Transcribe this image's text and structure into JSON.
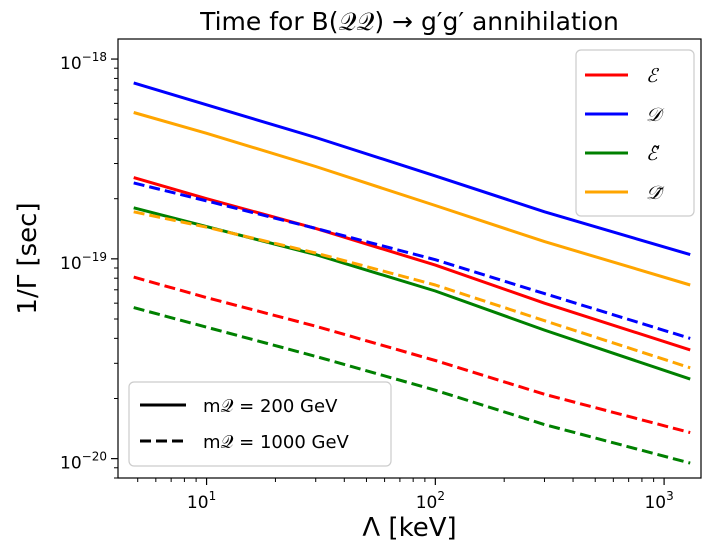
{
  "chart_data": {
    "type": "line",
    "title": "Time for B(𝒬𝒬) → g′g′ annihilation",
    "xlabel": "Λ [keV]",
    "ylabel": "1/Γ [sec]",
    "xscale": "log",
    "yscale": "log",
    "xlim": [
      4.1,
      1450
    ],
    "ylim": [
      8e-21,
      1.26e-18
    ],
    "x_tick_values": [
      10,
      100,
      1000
    ],
    "x_ticks": [
      {
        "base": "10",
        "exp": "1"
      },
      {
        "base": "10",
        "exp": "2"
      },
      {
        "base": "10",
        "exp": "3"
      }
    ],
    "y_tick_values": [
      1e-20,
      1e-19,
      1e-18
    ],
    "y_ticks": [
      {
        "base": "10",
        "exp": "−20"
      },
      {
        "base": "10",
        "exp": "−19"
      },
      {
        "base": "10",
        "exp": "−18"
      }
    ],
    "grid": false,
    "legend_colors": {
      "position": "top-right",
      "entries": [
        {
          "label": "ℰ",
          "color": "#ff0000"
        },
        {
          "label": "𝒟",
          "color": "#0000ff"
        },
        {
          "label": "ℰ̃",
          "color": "#008000"
        },
        {
          "label": "𝒟̃",
          "color": "#ffa500"
        }
      ]
    },
    "legend_styles": {
      "position": "bottom-left",
      "entries": [
        {
          "label": "m𝒬 = 200 GeV",
          "dash": "solid"
        },
        {
          "label": "m𝒬 = 1000 GeV",
          "dash": "dashed"
        }
      ]
    },
    "series": [
      {
        "color": "#0000ff",
        "dash": "solid",
        "x": [
          4.8,
          10,
          30,
          100,
          300,
          1300
        ],
        "y": [
          7.6e-19,
          5.9e-19,
          4.05e-19,
          2.6e-19,
          1.72e-19,
          1.05e-19
        ]
      },
      {
        "color": "#ffa500",
        "dash": "solid",
        "x": [
          4.8,
          10,
          30,
          100,
          300,
          1300
        ],
        "y": [
          5.4e-19,
          4.25e-19,
          2.9e-19,
          1.85e-19,
          1.22e-19,
          7.4e-20
        ]
      },
      {
        "color": "#ff0000",
        "dash": "solid",
        "x": [
          4.8,
          10,
          30,
          100,
          300,
          1300
        ],
        "y": [
          2.55e-19,
          2e-19,
          1.42e-19,
          9.3e-20,
          6e-20,
          3.5e-20
        ]
      },
      {
        "color": "#008000",
        "dash": "solid",
        "x": [
          4.8,
          10,
          30,
          100,
          300,
          1300
        ],
        "y": [
          1.8e-19,
          1.45e-19,
          1.05e-19,
          6.9e-20,
          4.4e-20,
          2.5e-20
        ]
      },
      {
        "color": "#0000ff",
        "dash": "dashed",
        "x": [
          4.8,
          10,
          30,
          100,
          300,
          1300
        ],
        "y": [
          2.4e-19,
          1.95e-19,
          1.42e-19,
          9.9e-20,
          6.7e-20,
          4e-20
        ]
      },
      {
        "color": "#ffa500",
        "dash": "dashed",
        "x": [
          4.8,
          10,
          30,
          100,
          300,
          1300
        ],
        "y": [
          1.72e-19,
          1.44e-19,
          1.07e-19,
          7.4e-20,
          4.9e-20,
          2.85e-20
        ]
      },
      {
        "color": "#ff0000",
        "dash": "dashed",
        "x": [
          4.8,
          10,
          30,
          100,
          300,
          1300
        ],
        "y": [
          8.1e-20,
          6.4e-20,
          4.6e-20,
          3.1e-20,
          2.1e-20,
          1.35e-20
        ]
      },
      {
        "color": "#008000",
        "dash": "dashed",
        "x": [
          4.8,
          10,
          30,
          100,
          300,
          1300
        ],
        "y": [
          5.7e-20,
          4.55e-20,
          3.25e-20,
          2.2e-20,
          1.48e-20,
          9.5e-21
        ]
      }
    ]
  }
}
